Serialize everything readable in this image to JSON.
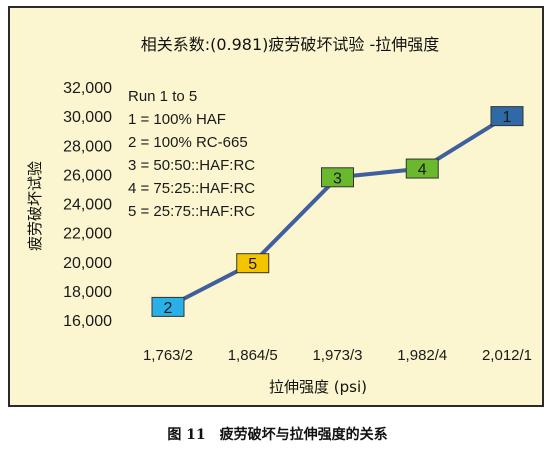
{
  "caption": "图 11　疲劳破坏与拉伸强度的关系",
  "chart_data": {
    "type": "line",
    "title": "相关系数:(0.981)疲劳破坏试验 -拉伸强度",
    "xlabel": "拉伸强度 (psi)",
    "ylabel": "疲劳破坏试验",
    "categories": [
      "1,763/2",
      "1,864/5",
      "1,973/3",
      "1,982/4",
      "2,012/1"
    ],
    "series": [
      {
        "values": [
          16900,
          19900,
          25800,
          26400,
          30000
        ],
        "labels": [
          "2",
          "5",
          "3",
          "4",
          "1"
        ],
        "marker_colors": [
          "#2ab0e8",
          "#f5c400",
          "#6ab82e",
          "#6ab82e",
          "#2f6aa6"
        ],
        "line_color": "#3f5f9e"
      }
    ],
    "ylim": [
      16000,
      32000
    ],
    "yticks": [
      "16,000",
      "18,000",
      "20,000",
      "22,000",
      "24,000",
      "26,000",
      "28,000",
      "30,000",
      "32,000"
    ],
    "grid": false,
    "legend": {
      "position": "top-left",
      "title": "Run 1 to 5",
      "entries": [
        "1 = 100% HAF",
        "2 = 100% RC-665",
        "3 = 50:50::HAF:RC",
        "4 = 75:25::HAF:RC",
        "5 = 25:75::HAF:RC"
      ]
    }
  }
}
